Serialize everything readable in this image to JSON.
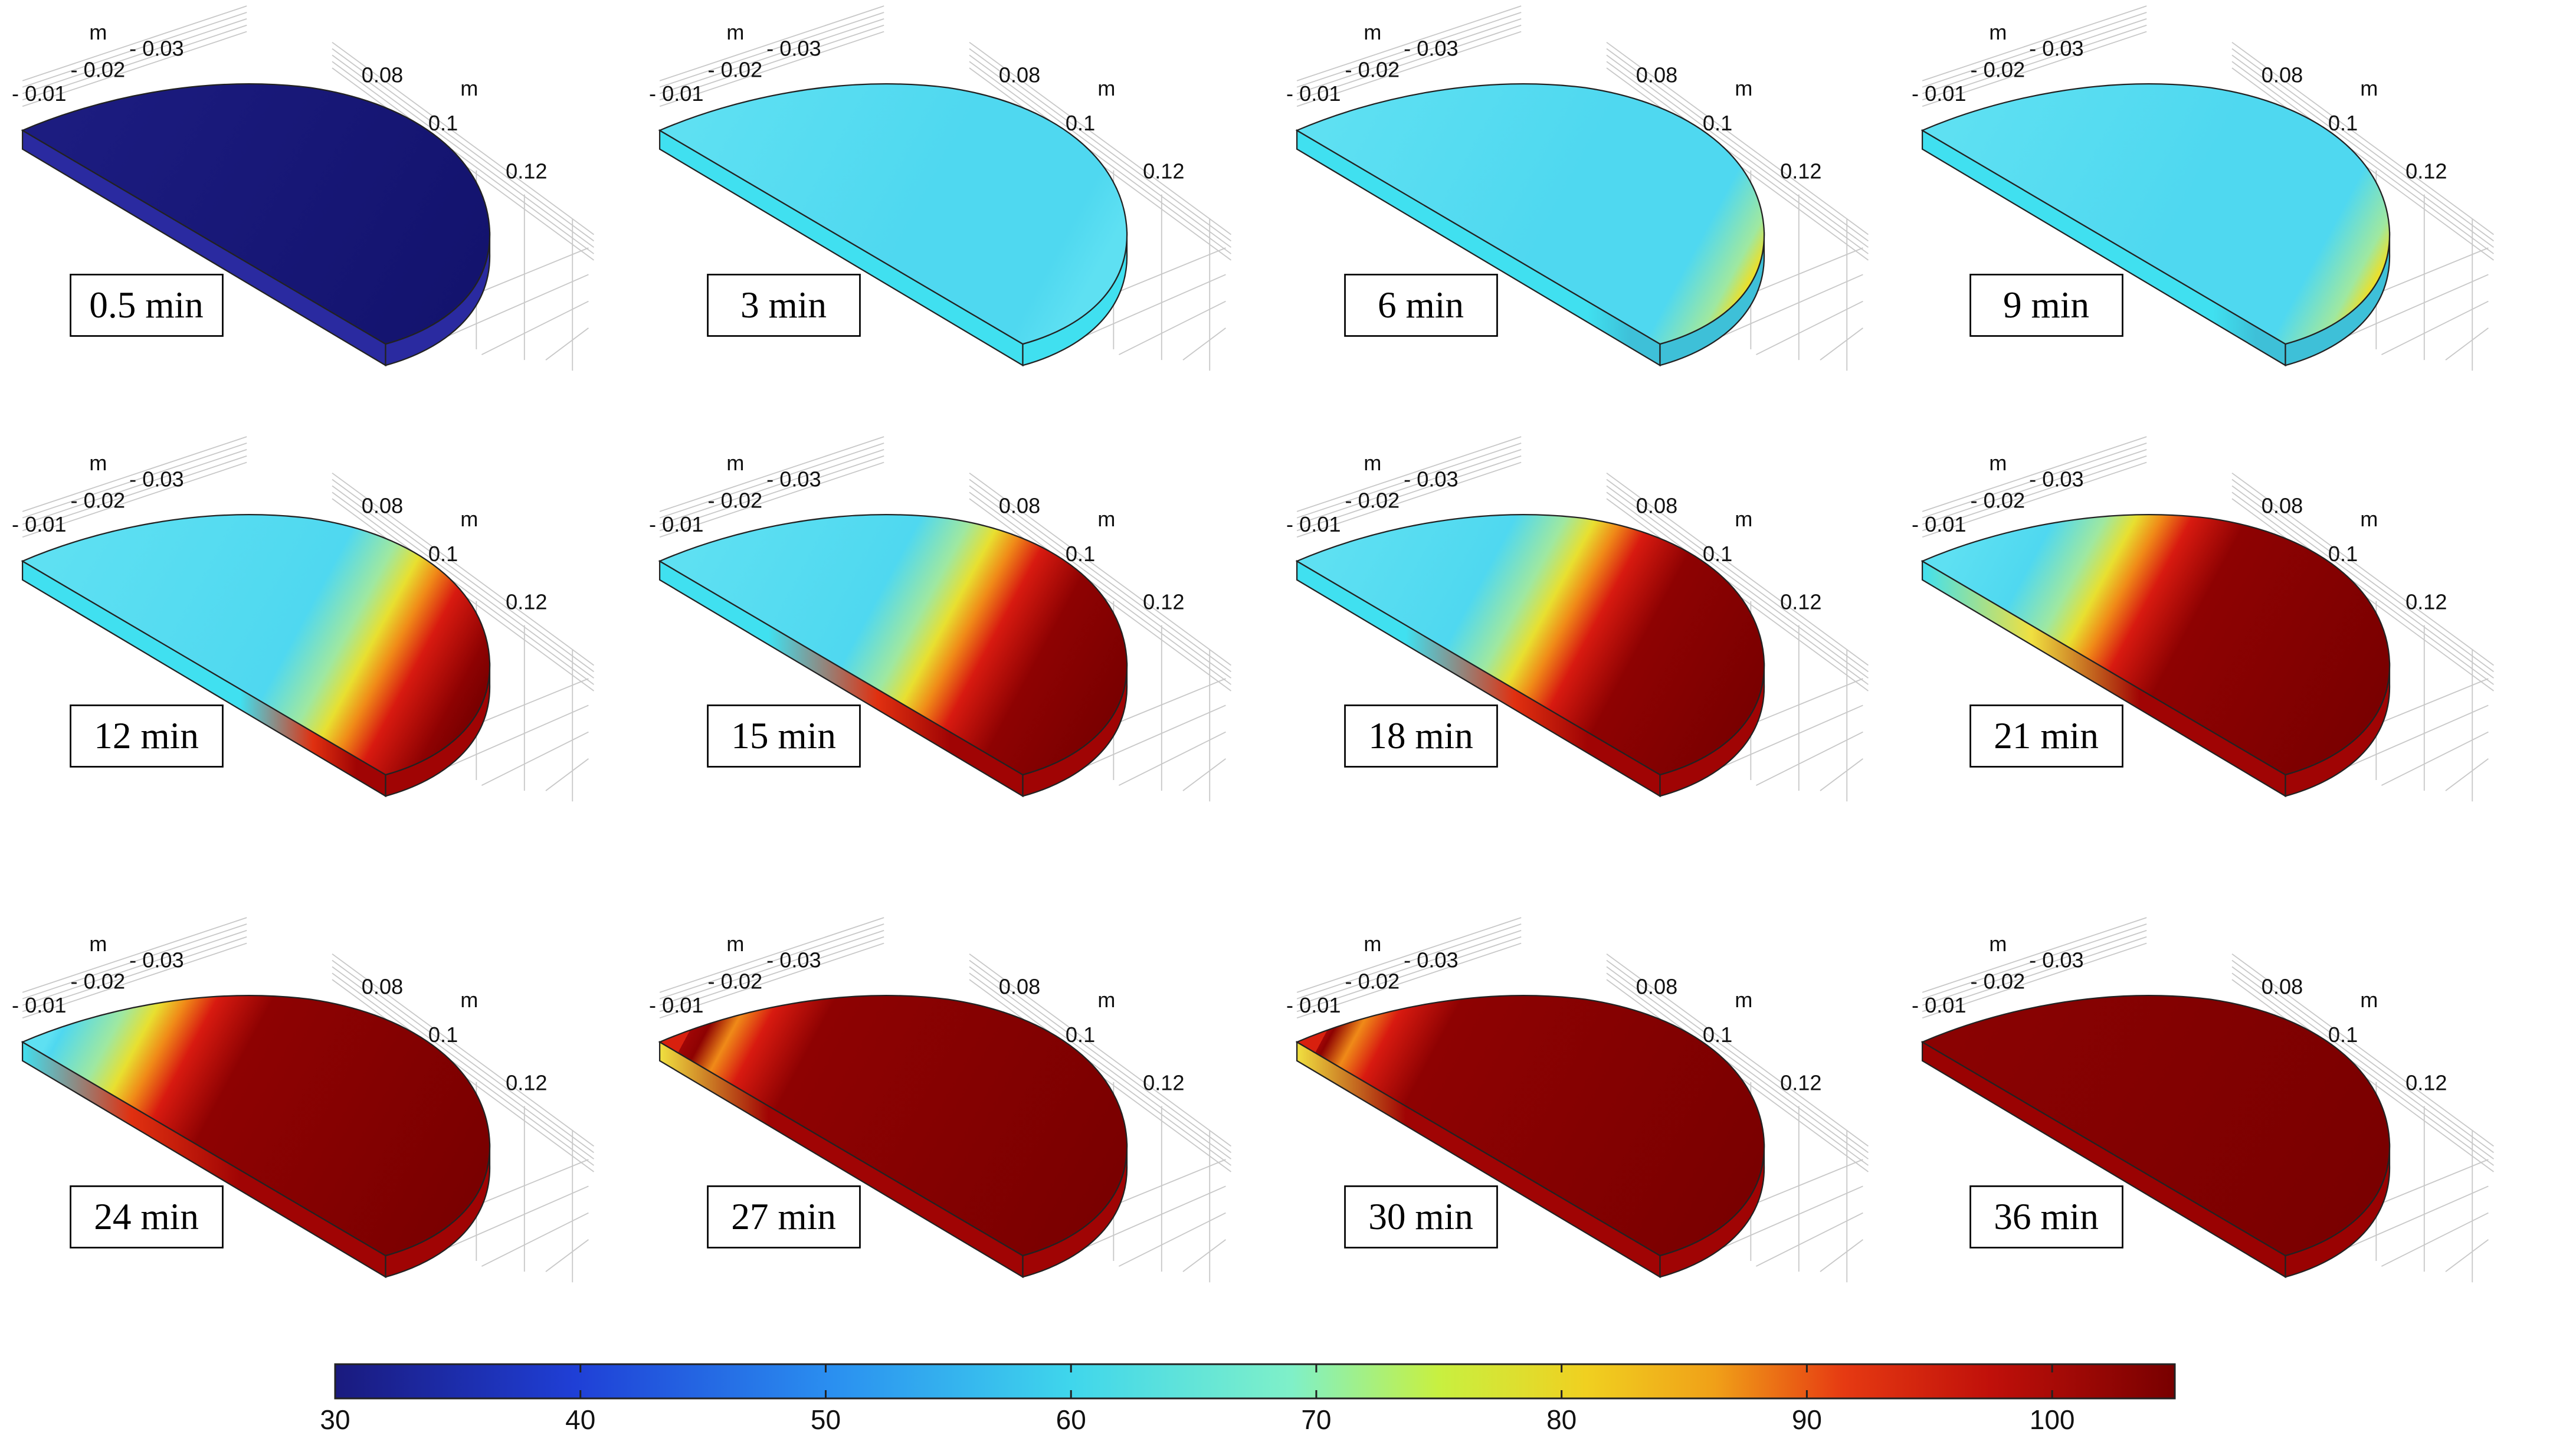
{
  "panels": [
    {
      "time_label": "0.5 min",
      "phase": 0.0
    },
    {
      "time_label": "3 min",
      "phase": 0.05
    },
    {
      "time_label": "6 min",
      "phase": 0.1
    },
    {
      "time_label": "9 min",
      "phase": 0.12
    },
    {
      "time_label": "12 min",
      "phase": 0.28
    },
    {
      "time_label": "15 min",
      "phase": 0.42
    },
    {
      "time_label": "18 min",
      "phase": 0.5
    },
    {
      "time_label": "21 min",
      "phase": 0.66
    },
    {
      "time_label": "24 min",
      "phase": 0.8
    },
    {
      "time_label": "27 min",
      "phase": 0.94
    },
    {
      "time_label": "30 min",
      "phase": 0.96
    },
    {
      "time_label": "36 min",
      "phase": 1.0
    }
  ],
  "axes": {
    "unit": "m",
    "ticks_left": [
      "- 0.01",
      "- 0.02",
      "- 0.03"
    ],
    "ticks_right": [
      "0.08",
      "0.1",
      "0.12"
    ]
  },
  "colorbar": {
    "min": 30,
    "max": 105,
    "ticks": [
      30,
      40,
      50,
      60,
      70,
      80,
      90,
      100
    ],
    "colormap": "rainbow"
  }
}
